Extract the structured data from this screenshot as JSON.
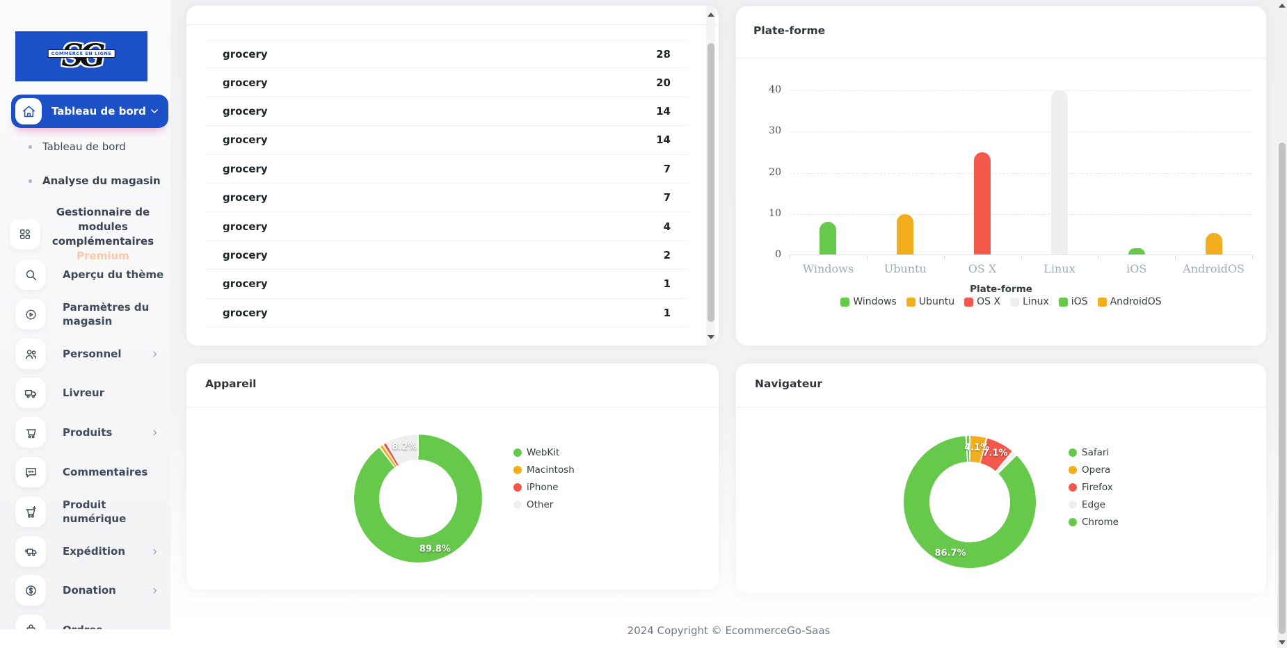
{
  "colors": {
    "blue": "#1b50c7",
    "green": "#67c94c",
    "amber": "#f2ae1c",
    "red": "#f2594a",
    "gray": "#efefef"
  },
  "sidebar": {
    "logo": {
      "text": "SG",
      "banner": "COMMERCE EN LIGNE"
    },
    "active_item": {
      "label": "Tableau de bord",
      "icon": "home-icon"
    },
    "sub_items": [
      {
        "label": "Tableau de bord",
        "active": false
      },
      {
        "label": "Analyse du magasin",
        "active": true
      }
    ],
    "module_item": {
      "label_line1": "Gestionnaire de modules",
      "label_line2": "complémentaires",
      "badge": "Premium",
      "icon": "grid-icon"
    },
    "items": [
      {
        "label": "Aperçu du thème",
        "icon": "search-icon",
        "chevron": false
      },
      {
        "label": "Paramètres du magasin",
        "icon": "gear-icon",
        "chevron": false
      },
      {
        "label": "Personnel",
        "icon": "users-icon",
        "chevron": true
      },
      {
        "label": "Livreur",
        "icon": "truck-icon",
        "chevron": false
      },
      {
        "label": "Produits",
        "icon": "cart-icon",
        "chevron": true
      },
      {
        "label": "Commentaires",
        "icon": "chat-icon",
        "chevron": false
      },
      {
        "label": "Produit numérique",
        "icon": "cart-plus-icon",
        "chevron": false
      },
      {
        "label": "Expédition",
        "icon": "shipping-icon",
        "chevron": true
      },
      {
        "label": "Donation",
        "icon": "donation-icon",
        "chevron": true
      },
      {
        "label": "Ordres",
        "icon": "orders-icon",
        "chevron": false
      }
    ]
  },
  "table_card": {
    "rows": [
      {
        "name": "grocery",
        "value": "28"
      },
      {
        "name": "grocery",
        "value": "20"
      },
      {
        "name": "grocery",
        "value": "14"
      },
      {
        "name": "grocery",
        "value": "14"
      },
      {
        "name": "grocery",
        "value": "7"
      },
      {
        "name": "grocery",
        "value": "7"
      },
      {
        "name": "grocery",
        "value": "4"
      },
      {
        "name": "grocery",
        "value": "2"
      },
      {
        "name": "grocery",
        "value": "1"
      },
      {
        "name": "grocery",
        "value": "1"
      }
    ]
  },
  "chart_data": [
    {
      "type": "bar",
      "title": "Plate-forme",
      "categories": [
        "Windows",
        "Ubuntu",
        "OS X",
        "Linux",
        "iOS",
        "AndroidOS"
      ],
      "values": [
        8,
        9.8,
        24.8,
        39.8,
        1.6,
        5.2
      ],
      "bar_colors": [
        "#67c94c",
        "#f2ae1c",
        "#f2594a",
        "#efefef",
        "#67c94c",
        "#f2ae1c"
      ],
      "yticks": [
        40,
        30,
        20,
        10,
        0
      ],
      "ylim": [
        0,
        40
      ],
      "grid": "dashed horizontal",
      "legend_position": "bottom",
      "legend_title": "Plate-forme",
      "legend": [
        {
          "label": "Windows",
          "color": "#67c94c"
        },
        {
          "label": "Ubuntu",
          "color": "#f2ae1c"
        },
        {
          "label": "OS X",
          "color": "#f2594a"
        },
        {
          "label": "Linux",
          "color": "#efefef"
        },
        {
          "label": "iOS",
          "color": "#67c94c"
        },
        {
          "label": "AndroidOS",
          "color": "#f2ae1c"
        }
      ]
    },
    {
      "type": "donut",
      "title": "Appareil",
      "slices": [
        {
          "name": "WebKit",
          "pct": 89.8,
          "color": "#67c94c",
          "label": "89.8%"
        },
        {
          "name": "Macintosh",
          "pct": 1.0,
          "color": "#f2ae1c",
          "label": null
        },
        {
          "name": "iPhone",
          "pct": 1.0,
          "color": "#f2594a",
          "label": null
        },
        {
          "name": "Other",
          "pct": 8.2,
          "color": "#efefef",
          "label": "8.2%"
        }
      ],
      "legend_position": "right",
      "legend": [
        {
          "label": "WebKit",
          "color": "#67c94c"
        },
        {
          "label": "Macintosh",
          "color": "#f2ae1c"
        },
        {
          "label": "iPhone",
          "color": "#f2594a"
        },
        {
          "label": "Other",
          "color": "#efefef"
        }
      ]
    },
    {
      "type": "donut",
      "title": "Navigateur",
      "slices": [
        {
          "name": "Opera",
          "pct": 4.1,
          "color": "#f2ae1c",
          "label": "4.1%"
        },
        {
          "name": "Firefox",
          "pct": 7.1,
          "color": "#f2594a",
          "label": "7.1%"
        },
        {
          "name": "Edge",
          "pct": 1.2,
          "color": "#efefef",
          "label": null
        },
        {
          "name": "Chrome",
          "pct": 86.7,
          "color": "#67c94c",
          "label": "86.7%"
        },
        {
          "name": "Safari",
          "pct": 0.9,
          "color": "#67c94c",
          "label": null
        }
      ],
      "legend_position": "right",
      "legend": [
        {
          "label": "Safari",
          "color": "#67c94c"
        },
        {
          "label": "Opera",
          "color": "#f2ae1c"
        },
        {
          "label": "Firefox",
          "color": "#f2594a"
        },
        {
          "label": "Edge",
          "color": "#efefef"
        },
        {
          "label": "Chrome",
          "color": "#67c94c"
        }
      ]
    }
  ],
  "footer": {
    "copyright": "2024 Copyright © EcommerceGo-Saas"
  }
}
